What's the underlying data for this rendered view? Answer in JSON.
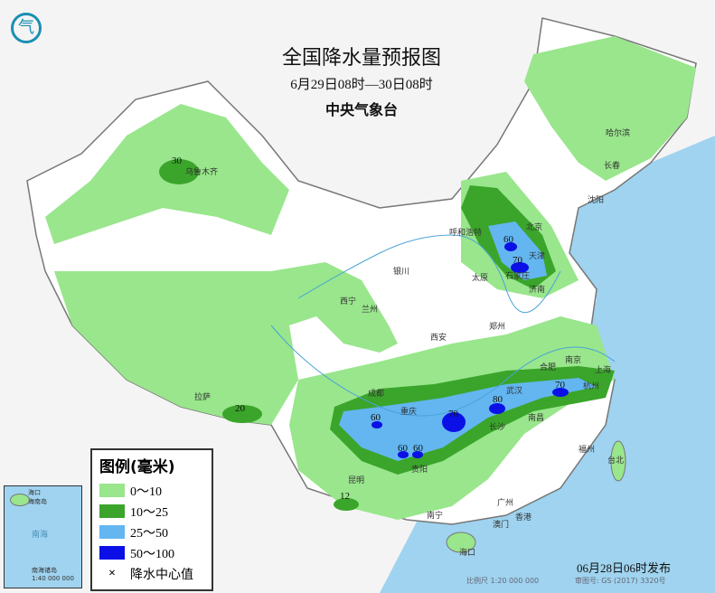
{
  "header": {
    "title": "全国降水量预报图",
    "period": "6月29日08时—30日08时",
    "issuer": "中央气象台"
  },
  "legend": {
    "title": "图例(毫米)",
    "items": [
      {
        "label": "0～10",
        "color": "#99e68c"
      },
      {
        "label": "10～25",
        "color": "#3aa52a"
      },
      {
        "label": "25～50",
        "color": "#63b6f0"
      },
      {
        "label": "50～100",
        "color": "#0a10e6"
      }
    ],
    "center_label": "降水中心值",
    "center_symbol": "×"
  },
  "footer": {
    "issued": "06月28日06时发布",
    "scale": "比例尺 1:20 000 000",
    "approval": "审图号: GS (2017) 3320号"
  },
  "inset": {
    "labels": [
      "海口",
      "海南岛",
      "南海",
      "南海诸岛",
      "1:40 000 000"
    ]
  },
  "cities": [
    "哈尔滨",
    "长春",
    "沈阳",
    "北京",
    "天津",
    "呼和浩特",
    "石家庄",
    "太原",
    "济南",
    "银川",
    "西宁",
    "兰州",
    "西安",
    "郑州",
    "合肥",
    "南京",
    "上海",
    "杭州",
    "武汉",
    "成都",
    "重庆",
    "长沙",
    "南昌",
    "福州",
    "台北",
    "拉萨",
    "昆明",
    "贵阳",
    "南宁",
    "广州",
    "香港",
    "澳门",
    "海口",
    "乌鲁木齐"
  ],
  "rain_centers": [
    "30",
    "20",
    "12",
    "60",
    "70",
    "60",
    "70",
    "80",
    "60",
    "60",
    "70"
  ]
}
